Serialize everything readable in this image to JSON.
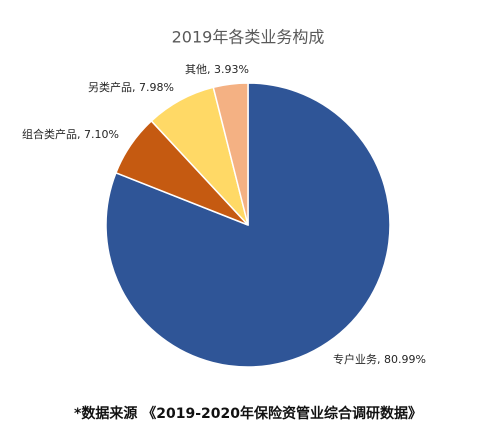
{
  "chart_data": {
    "type": "pie",
    "title": "2019年各类业务构成",
    "categories": [
      "专户业务",
      "组合类产品",
      "另类产品",
      "其他"
    ],
    "values": [
      80.99,
      7.1,
      7.98,
      3.93
    ],
    "value_labels": [
      "专户业务, 80.99%",
      "组合类产品, 7.10%",
      "另类产品, 7.98%",
      "其他, 3.93%"
    ],
    "colors": [
      "#2f5597",
      "#c55a11",
      "#ffd966",
      "#f4b183"
    ],
    "source": "*数据来源 《2019-2020年保险资管业综合调研数据》"
  }
}
